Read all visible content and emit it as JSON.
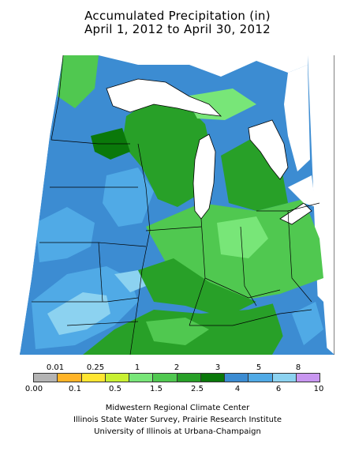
{
  "title": {
    "line1": "Accumulated Precipitation (in)",
    "line2": "April 1, 2012 to April 30, 2012"
  },
  "legend": {
    "top_ticks": [
      "0.01",
      "0.25",
      "1",
      "2",
      "3",
      "5",
      "8"
    ],
    "bottom_ticks": [
      "0.00",
      "0.1",
      "0.5",
      "1.5",
      "2.5",
      "4",
      "6",
      "10"
    ],
    "colors": [
      "#b4b4b4",
      "#ffb428",
      "#ffe632",
      "#c8f032",
      "#78e678",
      "#50c850",
      "#28a028",
      "#0a780a",
      "#3c8cd2",
      "#50aae6",
      "#8cd2f0",
      "#c896f0"
    ]
  },
  "credits": {
    "line1": "Midwestern Regional Climate Center",
    "line2": "Illinois State Water Survey, Prairie Research Institute",
    "line3": "University of Illinois at Urbana-Champaign"
  }
}
